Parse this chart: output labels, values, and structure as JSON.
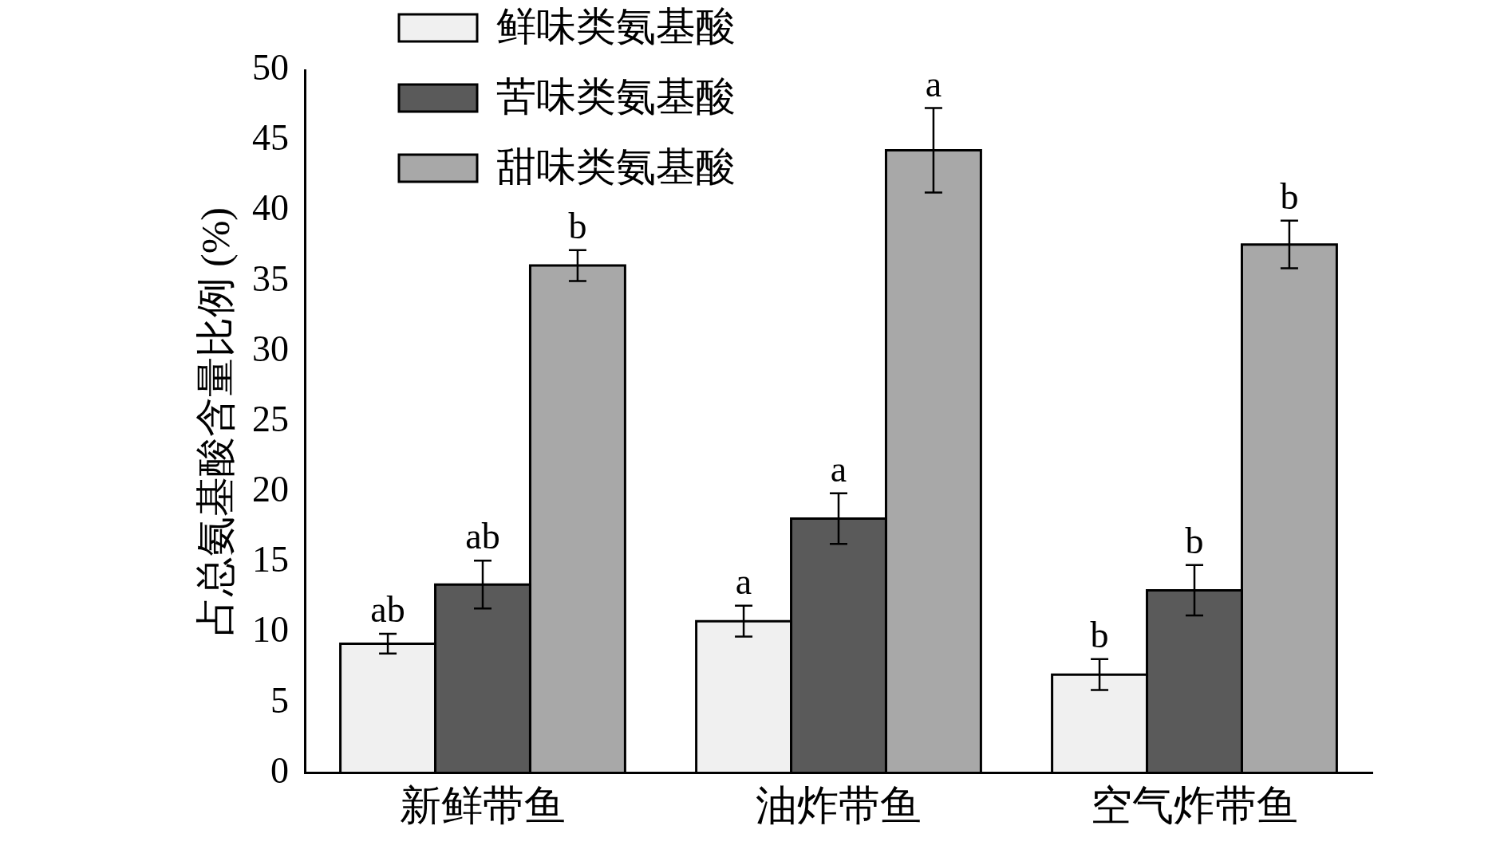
{
  "chart_data": {
    "type": "bar",
    "ylabel": "占总氨基酸含量比例 (%)",
    "categories": [
      "新鲜带鱼",
      "油炸带鱼",
      "空气炸带鱼"
    ],
    "series": [
      {
        "name": "鲜味类氨基酸",
        "color": "#f0f0f0",
        "values": [
          9.2,
          10.8,
          7.0
        ],
        "errors": [
          0.7,
          1.1,
          1.1
        ],
        "value_labels": [
          "ab",
          "a",
          "b"
        ]
      },
      {
        "name": "苦味类氨基酸",
        "color": "#5a5a5a",
        "values": [
          13.4,
          18.1,
          13.0
        ],
        "errors": [
          1.7,
          1.8,
          1.8
        ],
        "value_labels": [
          "ab",
          "a",
          "b"
        ]
      },
      {
        "name": "甜味类氨基酸",
        "color": "#a8a8a8",
        "values": [
          36.1,
          44.3,
          37.6
        ],
        "errors": [
          1.1,
          3.0,
          1.7
        ],
        "value_labels": [
          "b",
          "a",
          "b"
        ]
      }
    ],
    "ylim": [
      0,
      50
    ],
    "yticks": [
      0,
      5,
      10,
      15,
      20,
      25,
      30,
      35,
      40,
      45,
      50
    ],
    "grid": false,
    "legend": "top left"
  }
}
